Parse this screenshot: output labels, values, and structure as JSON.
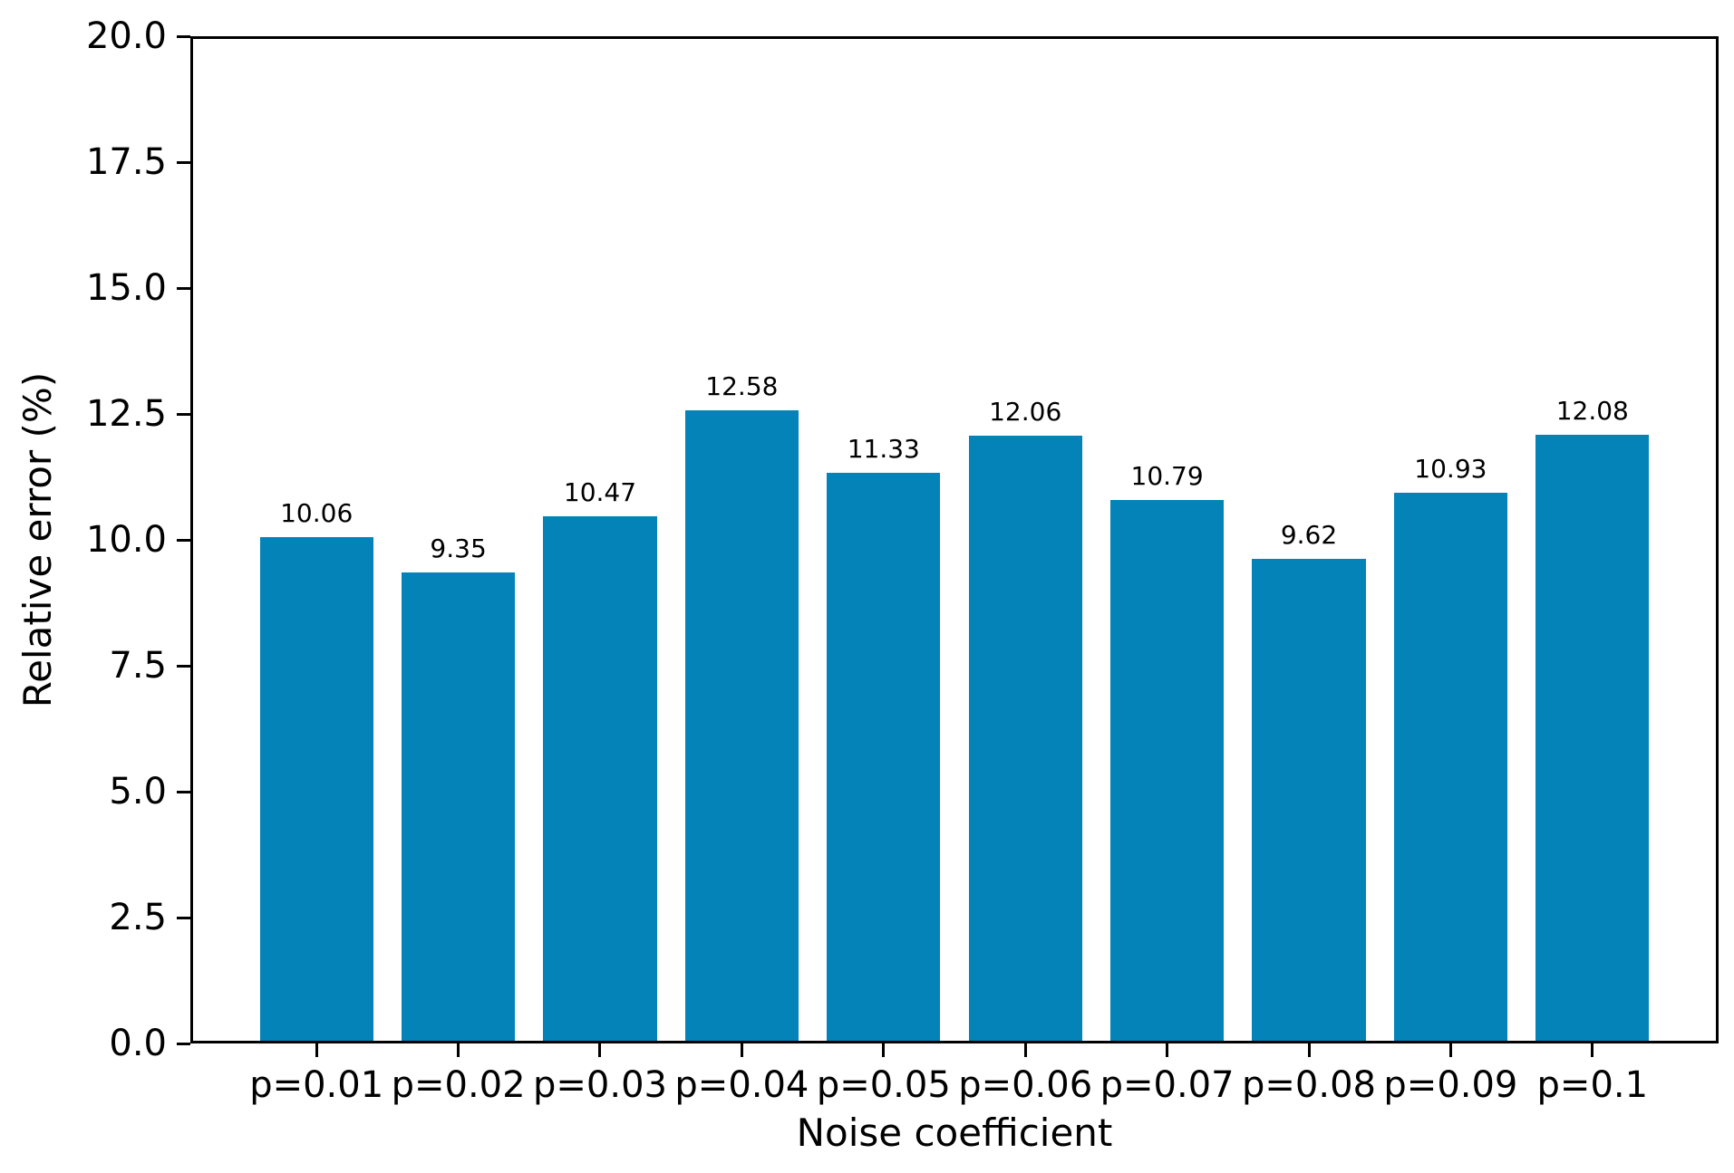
{
  "chart_data": {
    "type": "bar",
    "categories": [
      "p=0.01",
      "p=0.02",
      "p=0.03",
      "p=0.04",
      "p=0.05",
      "p=0.06",
      "p=0.07",
      "p=0.08",
      "p=0.09",
      "p=0.1"
    ],
    "values": [
      10.06,
      9.35,
      10.47,
      12.58,
      11.33,
      12.06,
      10.79,
      9.62,
      10.93,
      12.08
    ],
    "value_labels": [
      "10.06",
      "9.35",
      "10.47",
      "12.58",
      "11.33",
      "12.06",
      "10.79",
      "9.62",
      "10.93",
      "12.08"
    ],
    "title": "",
    "xlabel": "Noise coefficient",
    "ylabel": "Relative error (%)",
    "ylim": [
      0,
      20
    ],
    "ytick_values": [
      0,
      2.5,
      5,
      7.5,
      10,
      12.5,
      15,
      17.5,
      20
    ],
    "ytick_labels": [
      "0.0",
      "2.5",
      "5.0",
      "7.5",
      "10.0",
      "12.5",
      "15.0",
      "17.5",
      "20.0"
    ],
    "bar_color": "#0383b8",
    "grid": false,
    "legend": null,
    "layout_hint": "single series vertical bars, value labels above bars, closed box spines"
  }
}
